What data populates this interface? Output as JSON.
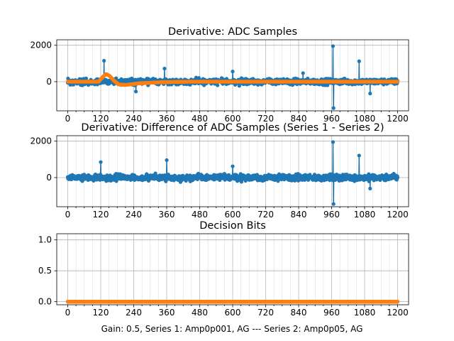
{
  "figure": {
    "footer": "Gain: 0.5, Series 1: Amp0p001, AG --- Series 2: Amp0p05, AG"
  },
  "colors": {
    "series1": "#1f77b4",
    "series2": "#ff7f0e",
    "grid": "#b0b0b0"
  },
  "chart_data": [
    {
      "type": "line",
      "title": "Derivative: ADC Samples",
      "xlim": [
        -40,
        1240
      ],
      "ylim": [
        -1600,
        2300
      ],
      "xticks": [
        0,
        120,
        240,
        360,
        480,
        600,
        720,
        840,
        960,
        1080,
        1200
      ],
      "yticks": [
        0,
        2000
      ],
      "grid": true,
      "markers": "dots",
      "n_points": 1201,
      "series": [
        {
          "color": "#1f77b4",
          "noise_amplitude": 150,
          "spikes": [
            {
              "x": 132,
              "y": 1150
            },
            {
              "x": 248,
              "y": -540
            },
            {
              "x": 352,
              "y": 720
            },
            {
              "x": 600,
              "y": 560
            },
            {
              "x": 856,
              "y": 470
            },
            {
              "x": 965,
              "y": 1950
            },
            {
              "x": 967,
              "y": -1450
            },
            {
              "x": 1060,
              "y": 1120
            },
            {
              "x": 1100,
              "y": -650
            }
          ]
        },
        {
          "color": "#ff7f0e",
          "profile": [
            [
              0,
              0
            ],
            [
              112,
              0
            ],
            [
              130,
              300
            ],
            [
              140,
              420
            ],
            [
              152,
              320
            ],
            [
              168,
              60
            ],
            [
              185,
              -150
            ],
            [
              210,
              -180
            ],
            [
              260,
              -90
            ],
            [
              340,
              -30
            ],
            [
              440,
              0
            ],
            [
              1200,
              0
            ]
          ]
        }
      ]
    },
    {
      "type": "line",
      "title": "Derivative: Difference of ADC Samples (Series 1 - Series 2)",
      "xlim": [
        -40,
        1240
      ],
      "ylim": [
        -1600,
        2300
      ],
      "xticks": [
        0,
        120,
        240,
        360,
        480,
        600,
        720,
        840,
        960,
        1080,
        1200
      ],
      "yticks": [
        0,
        2000
      ],
      "grid": true,
      "markers": "dots",
      "n_points": 1201,
      "series": [
        {
          "color": "#1f77b4",
          "noise_amplitude": 160,
          "spikes": [
            {
              "x": 120,
              "y": 850
            },
            {
              "x": 360,
              "y": 960
            },
            {
              "x": 600,
              "y": 620
            },
            {
              "x": 965,
              "y": 1950
            },
            {
              "x": 967,
              "y": -1450
            },
            {
              "x": 1060,
              "y": 1210
            },
            {
              "x": 1100,
              "y": -600
            }
          ]
        }
      ]
    },
    {
      "type": "line",
      "title": "Decision Bits",
      "xlim": [
        -40,
        1240
      ],
      "ylim": [
        -0.05,
        1.1
      ],
      "xticks": [
        0,
        120,
        240,
        360,
        480,
        600,
        720,
        840,
        960,
        1080,
        1200
      ],
      "yticks": [
        0.0,
        0.5,
        1.0
      ],
      "grid": true,
      "markers": "dots",
      "n_points": 1201,
      "series": [
        {
          "color": "#1f77b4",
          "constant": 0
        },
        {
          "color": "#ff7f0e",
          "constant": 0
        }
      ]
    }
  ]
}
